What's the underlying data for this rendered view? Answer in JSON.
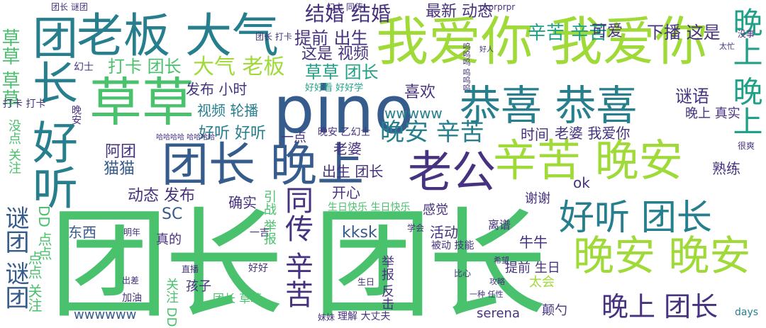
{
  "words": [
    "团长 团长",
    "我爱你 我爱你",
    "pino",
    "老板 大气",
    "草草",
    "恭喜 恭喜",
    "辛苦 晚安",
    "晚安 晚安",
    "团长 晚上",
    "老公",
    "好听 团长",
    "团长 好听",
    "谜团 谜团",
    "同传 辛苦",
    "晚上 团长",
    "晚上 晚上",
    "晚安 辛苦",
    "结婚 结婚",
    "辛苦 辛苦",
    "大气 老板",
    "打卡 团长",
    "草草 团长",
    "草草 草草",
    "提前 出生",
    "这是 视频",
    "最新 动态",
    "下播 这是",
    "可爱",
    "喜欢",
    "发布 小时",
    "视频 轮播",
    "谜语",
    "wwwww",
    "好听 好听",
    "阿团",
    "猫猫",
    "动态 发布",
    "SC",
    "确实",
    "开心",
    "出生 团长",
    "老婆",
    "时间",
    "老婆 我爱你",
    "晚安 乙幻士",
    "一点",
    "晚上 真实",
    "熟练",
    "ok",
    "kksk",
    "东西",
    "真的",
    "活动",
    "感觉",
    "谢谢",
    "生日快乐 生日快乐",
    "提前 生日",
    "离谱",
    "被动 技能",
    "牛牛",
    "太会",
    "颠勺",
    "serena",
    "团长 草草",
    "理解 大丈夫",
    "wwwwww",
    "days",
    "一吉",
    "引战 举报",
    "举报 反击",
    "DD 点点",
    "点点 关注",
    "关注 DD",
    "没点 关注",
    "幻士",
    "打卡 打卡",
    "晚安",
    "团长 谜团",
    "团长 打卡",
    "幻士 同传",
    "好好看 好好学",
    "哈哈哈哈 哈哈哈哈",
    "呜呜呜 呜呜呜",
    "prprprpr",
    "孩子",
    "好好",
    "加油",
    "出差",
    "直播",
    "明年",
    "妹妹",
    "一种 任性",
    "生日",
    "学会",
    "比心",
    "攻略",
    "希望",
    "很爽",
    "没事",
    "太忙",
    "好人"
  ],
  "colors": {
    "dark_purple": "#46327e",
    "dark_blue": "#365c8d",
    "mid_blue": "#277f8e",
    "teal": "#1fa187",
    "green": "#4ac16d",
    "light_green": "#a0da39",
    "yellow_green": "#c4e02b",
    "navy": "#440154"
  }
}
